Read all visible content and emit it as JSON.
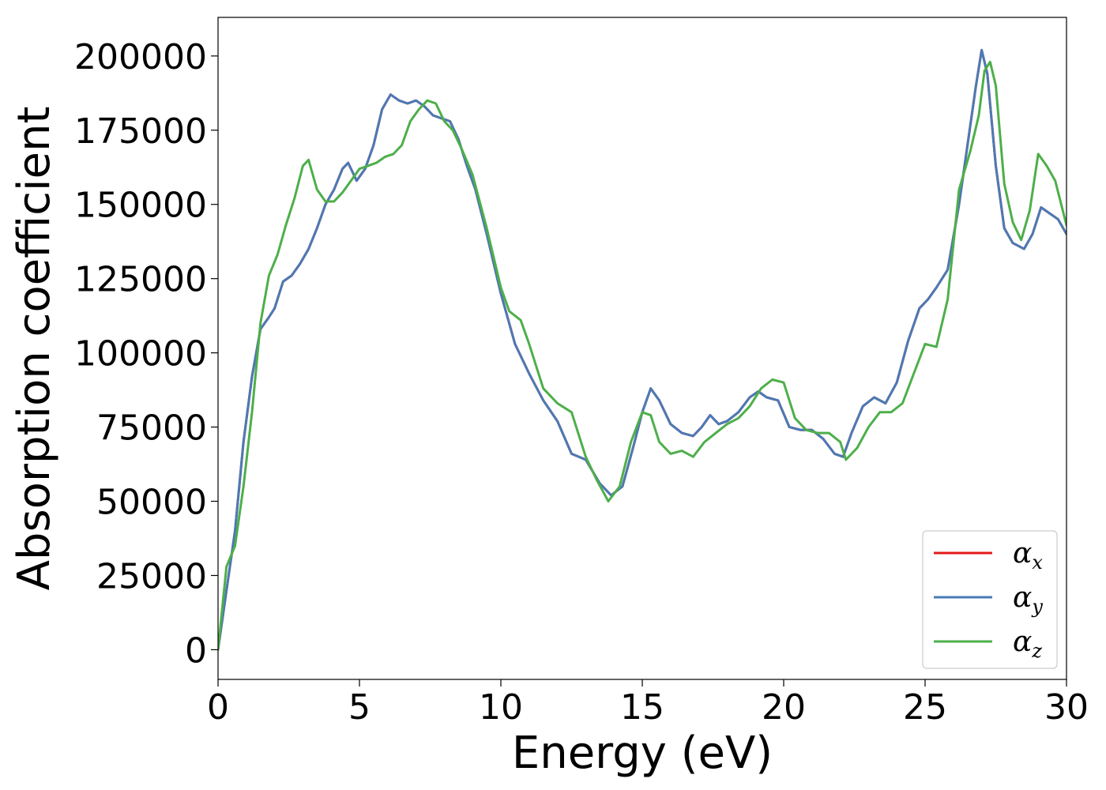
{
  "chart_data": {
    "type": "line",
    "title": "",
    "xlabel": "Energy (eV)",
    "ylabel": "Absorption coefficient",
    "xlim": [
      0,
      30
    ],
    "ylim": [
      -10000,
      213000
    ],
    "xticks": [
      0,
      5,
      10,
      15,
      20,
      25,
      30
    ],
    "yticks": [
      0,
      25000,
      50000,
      75000,
      100000,
      125000,
      150000,
      175000,
      200000
    ],
    "grid": false,
    "legend_position": "lower-right",
    "series": [
      {
        "name": "αx",
        "legend_symbol": "α",
        "legend_sub": "x",
        "color": "#e41a1c",
        "x": [
          0,
          0.3,
          0.6,
          0.9,
          1.2,
          1.5,
          1.8,
          2.0,
          2.3,
          2.6,
          2.9,
          3.2,
          3.5,
          3.8,
          4.1,
          4.4,
          4.6,
          4.9,
          5.2,
          5.5,
          5.8,
          6.1,
          6.4,
          6.7,
          7.0,
          7.3,
          7.6,
          7.9,
          8.2,
          8.5,
          8.8,
          9.1,
          9.5,
          10.0,
          10.5,
          11.0,
          11.5,
          12.0,
          12.5,
          13.0,
          13.5,
          13.9,
          14.3,
          14.7,
          15.0,
          15.3,
          15.6,
          16.0,
          16.4,
          16.8,
          17.1,
          17.4,
          17.7,
          18.0,
          18.4,
          18.8,
          19.1,
          19.4,
          19.8,
          20.2,
          20.6,
          21.0,
          21.4,
          21.8,
          22.1,
          22.4,
          22.8,
          23.2,
          23.6,
          24.0,
          24.4,
          24.8,
          25.1,
          25.4,
          25.8,
          26.2,
          26.5,
          26.8,
          27.0,
          27.2,
          27.5,
          27.8,
          28.1,
          28.5,
          28.8,
          29.1,
          29.4,
          29.7,
          30.0
        ],
        "y": [
          0,
          20000,
          40000,
          70000,
          92000,
          108000,
          112000,
          115000,
          124000,
          126000,
          130000,
          135000,
          142000,
          150000,
          155000,
          162000,
          164000,
          158000,
          162000,
          170000,
          182000,
          187000,
          185000,
          184000,
          185000,
          183000,
          180000,
          179000,
          178000,
          172000,
          163000,
          155000,
          140000,
          120000,
          103000,
          93000,
          84000,
          77000,
          66000,
          64000,
          56000,
          52000,
          55000,
          69000,
          80000,
          88000,
          84000,
          76000,
          73000,
          72000,
          75000,
          79000,
          76000,
          77000,
          80000,
          85000,
          87000,
          85000,
          84000,
          75000,
          74000,
          74000,
          71000,
          66000,
          65000,
          73000,
          82000,
          85000,
          83000,
          90000,
          104000,
          115000,
          118000,
          122000,
          128000,
          150000,
          170000,
          190000,
          202000,
          194000,
          163000,
          142000,
          137000,
          135000,
          140000,
          149000,
          147000,
          145000,
          140000
        ]
      },
      {
        "name": "αy",
        "legend_symbol": "α",
        "legend_sub": "y",
        "color": "#4a7ab5",
        "x": [
          0,
          0.3,
          0.6,
          0.9,
          1.2,
          1.5,
          1.8,
          2.0,
          2.3,
          2.6,
          2.9,
          3.2,
          3.5,
          3.8,
          4.1,
          4.4,
          4.6,
          4.9,
          5.2,
          5.5,
          5.8,
          6.1,
          6.4,
          6.7,
          7.0,
          7.3,
          7.6,
          7.9,
          8.2,
          8.5,
          8.8,
          9.1,
          9.5,
          10.0,
          10.5,
          11.0,
          11.5,
          12.0,
          12.5,
          13.0,
          13.5,
          13.9,
          14.3,
          14.7,
          15.0,
          15.3,
          15.6,
          16.0,
          16.4,
          16.8,
          17.1,
          17.4,
          17.7,
          18.0,
          18.4,
          18.8,
          19.1,
          19.4,
          19.8,
          20.2,
          20.6,
          21.0,
          21.4,
          21.8,
          22.1,
          22.4,
          22.8,
          23.2,
          23.6,
          24.0,
          24.4,
          24.8,
          25.1,
          25.4,
          25.8,
          26.2,
          26.5,
          26.8,
          27.0,
          27.2,
          27.5,
          27.8,
          28.1,
          28.5,
          28.8,
          29.1,
          29.4,
          29.7,
          30.0
        ],
        "y": [
          0,
          20000,
          40000,
          70000,
          92000,
          108000,
          112000,
          115000,
          124000,
          126000,
          130000,
          135000,
          142000,
          150000,
          155000,
          162000,
          164000,
          158000,
          162000,
          170000,
          182000,
          187000,
          185000,
          184000,
          185000,
          183000,
          180000,
          179000,
          178000,
          172000,
          163000,
          155000,
          140000,
          120000,
          103000,
          93000,
          84000,
          77000,
          66000,
          64000,
          56000,
          52000,
          55000,
          69000,
          80000,
          88000,
          84000,
          76000,
          73000,
          72000,
          75000,
          79000,
          76000,
          77000,
          80000,
          85000,
          87000,
          85000,
          84000,
          75000,
          74000,
          74000,
          71000,
          66000,
          65000,
          73000,
          82000,
          85000,
          83000,
          90000,
          104000,
          115000,
          118000,
          122000,
          128000,
          150000,
          170000,
          190000,
          202000,
          194000,
          163000,
          142000,
          137000,
          135000,
          140000,
          149000,
          147000,
          145000,
          140000
        ]
      },
      {
        "name": "αz",
        "legend_symbol": "α",
        "legend_sub": "z",
        "color": "#4daf4a",
        "x": [
          0,
          0.3,
          0.6,
          0.9,
          1.2,
          1.5,
          1.8,
          2.1,
          2.4,
          2.7,
          3.0,
          3.2,
          3.5,
          3.8,
          4.1,
          4.4,
          4.7,
          5.0,
          5.3,
          5.6,
          5.9,
          6.2,
          6.5,
          6.8,
          7.1,
          7.4,
          7.7,
          8.0,
          8.3,
          8.6,
          9.0,
          9.5,
          10.0,
          10.3,
          10.7,
          11.0,
          11.5,
          12.0,
          12.5,
          13.0,
          13.4,
          13.8,
          14.2,
          14.6,
          15.0,
          15.3,
          15.6,
          16.0,
          16.4,
          16.8,
          17.2,
          17.6,
          18.0,
          18.4,
          18.8,
          19.2,
          19.6,
          20.0,
          20.4,
          20.8,
          21.2,
          21.6,
          22.0,
          22.2,
          22.6,
          23.0,
          23.4,
          23.8,
          24.2,
          24.6,
          25.0,
          25.4,
          25.8,
          26.2,
          26.6,
          26.9,
          27.1,
          27.3,
          27.5,
          27.8,
          28.1,
          28.4,
          28.7,
          29.0,
          29.3,
          29.6,
          30.0
        ],
        "y": [
          0,
          28000,
          35000,
          55000,
          80000,
          110000,
          126000,
          133000,
          143000,
          152000,
          163000,
          165000,
          155000,
          151000,
          151000,
          154000,
          158000,
          162000,
          163000,
          164000,
          166000,
          167000,
          170000,
          178000,
          182000,
          185000,
          184000,
          178000,
          175000,
          169000,
          160000,
          142000,
          122000,
          114000,
          111000,
          103000,
          88000,
          83000,
          80000,
          65000,
          57000,
          50000,
          55000,
          70000,
          80000,
          79000,
          70000,
          66000,
          67000,
          65000,
          70000,
          73000,
          76000,
          78000,
          82000,
          88000,
          91000,
          90000,
          78000,
          74000,
          73000,
          73000,
          70000,
          64000,
          68000,
          75000,
          80000,
          80000,
          83000,
          93000,
          103000,
          102000,
          118000,
          155000,
          168000,
          180000,
          195000,
          198000,
          190000,
          157000,
          144000,
          138000,
          148000,
          167000,
          163000,
          158000,
          143000
        ]
      }
    ]
  }
}
